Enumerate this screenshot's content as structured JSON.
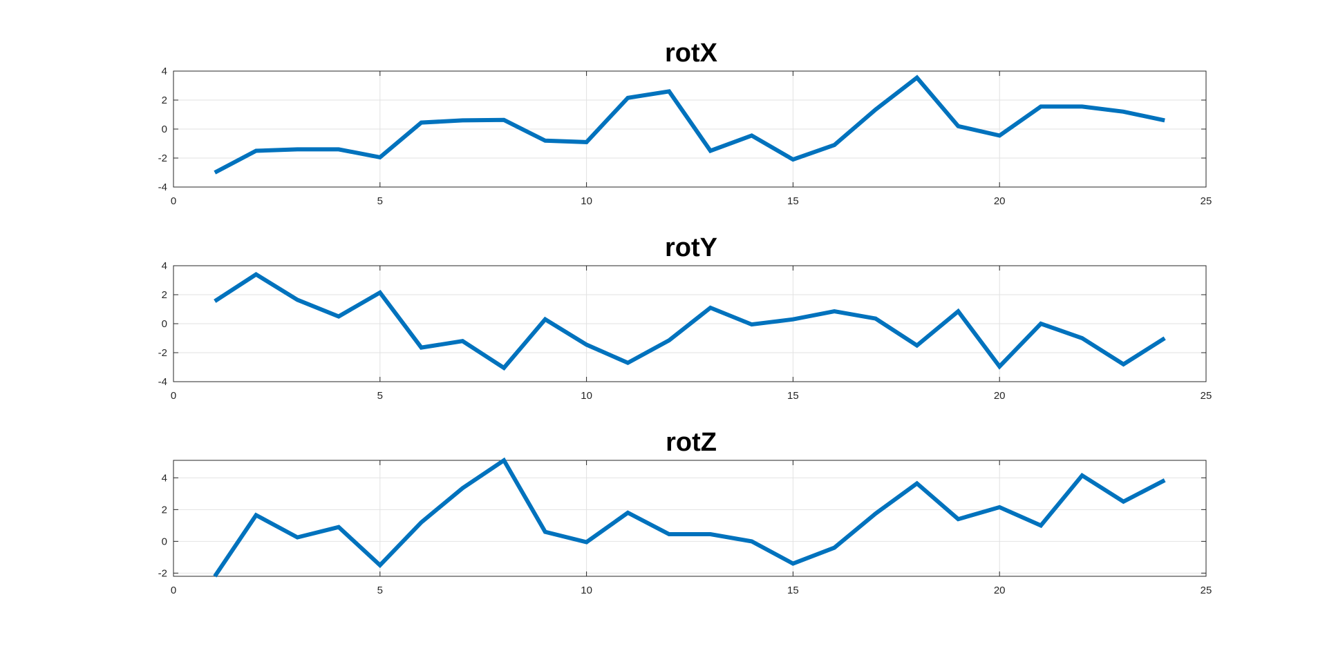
{
  "colors": {
    "series": "#0072BD",
    "background": "#ffffff"
  },
  "chart_data": [
    {
      "type": "line",
      "title": "rotX",
      "xlabel": "",
      "ylabel": "",
      "xlim": [
        0,
        25
      ],
      "ylim": [
        -4,
        4
      ],
      "xticks": [
        0,
        5,
        10,
        15,
        20,
        25
      ],
      "yticks": [
        -4,
        -2,
        0,
        2,
        4
      ],
      "grid": true,
      "x": [
        1,
        2,
        3,
        4,
        5,
        6,
        7,
        8,
        9,
        10,
        11,
        12,
        13,
        14,
        15,
        16,
        17,
        18,
        19,
        20,
        21,
        22,
        23,
        24
      ],
      "series": [
        {
          "values": [
            -3.0,
            -1.5,
            -1.4,
            -1.4,
            -1.95,
            0.45,
            0.6,
            0.63,
            -0.8,
            -0.9,
            2.15,
            2.6,
            -1.5,
            -0.45,
            -2.1,
            -1.1,
            1.35,
            3.55,
            0.2,
            -0.45,
            1.55,
            1.55,
            1.2,
            0.6
          ]
        }
      ]
    },
    {
      "type": "line",
      "title": "rotY",
      "xlabel": "",
      "ylabel": "",
      "xlim": [
        0,
        25
      ],
      "ylim": [
        -4,
        4
      ],
      "xticks": [
        0,
        5,
        10,
        15,
        20,
        25
      ],
      "yticks": [
        -4,
        -2,
        0,
        2,
        4
      ],
      "grid": true,
      "x": [
        1,
        2,
        3,
        4,
        5,
        6,
        7,
        8,
        9,
        10,
        11,
        12,
        13,
        14,
        15,
        16,
        17,
        18,
        19,
        20,
        21,
        22,
        23,
        24
      ],
      "series": [
        {
          "values": [
            1.55,
            3.4,
            1.65,
            0.5,
            2.15,
            -1.65,
            -1.2,
            -3.05,
            0.3,
            -1.45,
            -2.7,
            -1.15,
            1.1,
            -0.05,
            0.3,
            0.85,
            0.35,
            -1.5,
            0.85,
            -2.95,
            0.0,
            -1.0,
            -2.8,
            -1.0
          ]
        }
      ]
    },
    {
      "type": "line",
      "title": "rotZ",
      "xlabel": "",
      "ylabel": "",
      "xlim": [
        0,
        25
      ],
      "ylim": [
        -2.2,
        5.1
      ],
      "xticks": [
        0,
        5,
        10,
        15,
        20,
        25
      ],
      "yticks": [
        -2,
        0,
        2,
        4
      ],
      "grid": true,
      "x": [
        1,
        2,
        3,
        4,
        5,
        6,
        7,
        8,
        9,
        10,
        11,
        12,
        13,
        14,
        15,
        16,
        17,
        18,
        19,
        20,
        21,
        22,
        23,
        24
      ],
      "series": [
        {
          "values": [
            -2.2,
            1.65,
            0.25,
            0.9,
            -1.5,
            1.2,
            3.35,
            5.1,
            0.6,
            -0.05,
            1.8,
            0.45,
            0.45,
            0.0,
            -1.4,
            -0.4,
            1.75,
            3.65,
            1.4,
            2.15,
            1.0,
            4.15,
            2.5,
            3.85
          ]
        }
      ]
    }
  ]
}
